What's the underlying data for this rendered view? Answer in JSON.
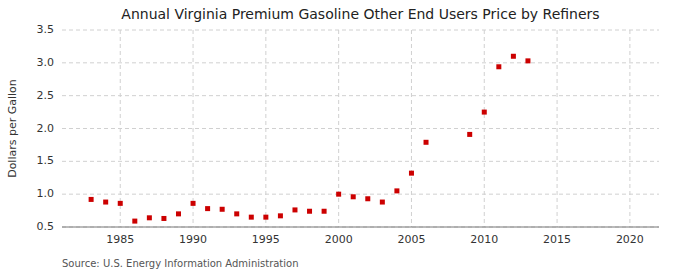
{
  "chart_data": {
    "type": "scatter",
    "title": "Annual Virginia Premium Gasoline Other End Users Price by Refiners",
    "ylabel": "Dollars per Gallon",
    "source": "Source: U.S. Energy Information Administration",
    "x": [
      1983,
      1984,
      1985,
      1986,
      1987,
      1988,
      1989,
      1990,
      1991,
      1992,
      1993,
      1994,
      1995,
      1996,
      1997,
      1998,
      1999,
      2000,
      2001,
      2002,
      2003,
      2004,
      2005,
      2006,
      2009,
      2010,
      2011,
      2012,
      2013
    ],
    "values": [
      0.92,
      0.88,
      0.86,
      0.59,
      0.64,
      0.63,
      0.7,
      0.86,
      0.78,
      0.77,
      0.7,
      0.65,
      0.65,
      0.67,
      0.76,
      0.74,
      0.74,
      1.0,
      0.96,
      0.93,
      0.88,
      1.05,
      1.32,
      1.79,
      1.91,
      2.25,
      2.94,
      3.1,
      3.03
    ],
    "color": "#cc0000",
    "marker": "square",
    "xlim": [
      1981,
      2022
    ],
    "ylim": [
      0.5,
      3.5
    ],
    "xticks": [
      1985,
      1990,
      1995,
      2000,
      2005,
      2010,
      2015,
      2020
    ],
    "yticks": [
      0.5,
      {
        "value": 1.0,
        "label": "1.0"
      },
      1.5,
      {
        "value": 2.0,
        "label": "2.0"
      },
      2.5,
      {
        "value": 3.0,
        "label": "3.0"
      },
      3.5
    ],
    "grid": true
  }
}
